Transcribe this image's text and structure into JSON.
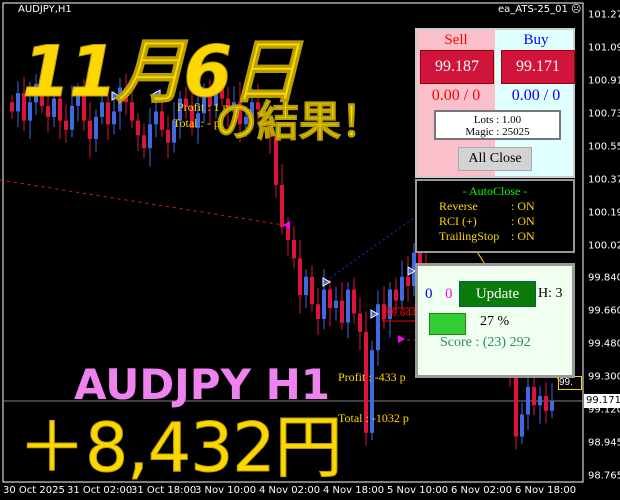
{
  "window": {
    "symbol_title": "AUDJPY,H1",
    "ea_name": "ea_ATS-25_01",
    "ea_status_icon": "sad-face-icon"
  },
  "colors": {
    "bull": "#4169e1",
    "bear": "#dc143c",
    "grid_line": "#808080",
    "overlay_yellow": "#ffd700",
    "overlay_violet": "#ee82ee"
  },
  "price_axis": {
    "labels": [
      "101.275",
      "101.095",
      "100.915",
      "100.735",
      "100.555",
      "100.375",
      "100.195",
      "100.020",
      "99.840",
      "99.660",
      "99.480",
      "99.300",
      "99.120",
      "98.945",
      "98.765"
    ],
    "current_price": "99.171",
    "partial_price_box": "99.",
    "line_price_box": "99.644"
  },
  "time_axis": {
    "labels": [
      "30 Oct 2025",
      "31 Oct 02:00",
      "31 Oct 18:00",
      "3 Nov 10:00",
      "4 Nov 02:00",
      "4 Nov 18:00",
      "5 Nov 10:00",
      "6 Nov 02:00",
      "6 Nov 18:00"
    ]
  },
  "candles_close": [
    100.75,
    100.85,
    100.7,
    100.8,
    100.9,
    100.78,
    100.72,
    100.82,
    100.7,
    100.65,
    100.78,
    100.85,
    100.7,
    100.6,
    100.72,
    100.8,
    100.68,
    100.75,
    100.88,
    100.8,
    100.7,
    100.62,
    100.55,
    100.68,
    100.75,
    100.65,
    100.58,
    100.7,
    100.82,
    100.78,
    100.66,
    100.74,
    100.85,
    100.78,
    100.9,
    100.82,
    100.75,
    100.8,
    100.68,
    100.72,
    100.8,
    100.76,
    100.7,
    100.62,
    100.35,
    100.12,
    100.05,
    99.95,
    99.75,
    99.85,
    99.7,
    99.62,
    99.78,
    99.68,
    99.72,
    99.6,
    99.78,
    99.65,
    99.55,
    99.0,
    99.45,
    99.7,
    99.62,
    99.78,
    99.72,
    99.85,
    99.8,
    99.98,
    99.9,
    99.85,
    99.8,
    99.7,
    99.75,
    99.62,
    99.7,
    99.58,
    99.65,
    99.5,
    99.6,
    99.48,
    99.55,
    99.4,
    99.5,
    99.35,
    98.98,
    99.1,
    99.25,
    99.15,
    99.2,
    99.12,
    99.171
  ],
  "chart_labels": {
    "profit_top": "Profit : 1  p",
    "total_top": "Total : -  p",
    "profit_bottom": "Profit : -433 p",
    "total_bottom": "Total : -1032 p"
  },
  "trade_panel": {
    "sell_label": "Sell",
    "buy_label": "Buy",
    "sell_price": "99.187",
    "buy_price": "99.171",
    "sell_pl": "0.00 / 0",
    "buy_pl": "0.00 / 0",
    "lots": "Lots   : 1.00",
    "magic": "Magic : 25025",
    "all_close": "All Close"
  },
  "autoclose_panel": {
    "title": "- AutoClose -",
    "rows": [
      {
        "name": "Reverse",
        "value": ": ON"
      },
      {
        "name": "RCI (+)",
        "value": ": ON"
      },
      {
        "name": "TrailingStop",
        "value": ": ON"
      }
    ]
  },
  "status_panel": {
    "count_blue": "0",
    "count_magenta": "0",
    "update": "Update",
    "h_value": "H: 3",
    "progress_percent": 27,
    "progress_label": "27 %",
    "score": "Score : (23) 292"
  },
  "overlay": {
    "date_title": "11月6日",
    "result_suffix": "の結果！",
    "pair_label": "AUDJPY H1",
    "profit_amount": "＋8,432円"
  }
}
